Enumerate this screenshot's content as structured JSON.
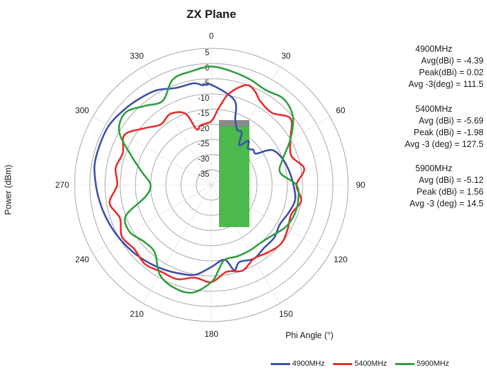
{
  "chart_data": {
    "type": "polar-line",
    "title": "ZX Plane",
    "xlabel": "Phi Angle (°)",
    "ylabel": "Power (dBm)",
    "radial_ticks": [
      "5",
      "0",
      "-5",
      "-10",
      "-15",
      "-20",
      "-25",
      "-30",
      "-35"
    ],
    "radial_range": [
      -40,
      5
    ],
    "angle_ticks": [
      "0",
      "30",
      "60",
      "90",
      "120",
      "150",
      "180",
      "210",
      "240",
      "270",
      "300",
      "330"
    ],
    "angle_direction": "clockwise",
    "grid": true,
    "legend_position": "bottom-right",
    "series": [
      {
        "name": "4900MHz",
        "color": "#3f4fa8",
        "phi": [
          0,
          15,
          20,
          25,
          30,
          35,
          40,
          45,
          50,
          55,
          60,
          70,
          80,
          90,
          100,
          110,
          120,
          130,
          140,
          150,
          160,
          165,
          170,
          180,
          190,
          200,
          210,
          220,
          230,
          240,
          250,
          260,
          270,
          280,
          290,
          300,
          310,
          320,
          330,
          340,
          350,
          355
        ],
        "power": [
          -7,
          -11,
          -17,
          -20,
          -20,
          -24,
          -21,
          -23,
          -22,
          -22,
          -17,
          -15,
          -14,
          -13,
          -12,
          -13,
          -14,
          -13,
          -13,
          -12,
          -13,
          -11,
          -15,
          -13,
          -10,
          -9,
          -8,
          -7,
          -6,
          -5,
          -4,
          -3,
          -2,
          -1,
          -1,
          -1,
          -2,
          -3,
          -4,
          -6,
          -6,
          -7
        ]
      },
      {
        "name": "5400MHz",
        "color": "#e82c2c",
        "phi": [
          0,
          5,
          10,
          15,
          20,
          25,
          30,
          40,
          50,
          60,
          70,
          80,
          90,
          100,
          110,
          120,
          130,
          140,
          150,
          160,
          170,
          180,
          190,
          200,
          210,
          220,
          230,
          240,
          250,
          260,
          270,
          280,
          290,
          300,
          310,
          320,
          330,
          340,
          345,
          350
        ],
        "power": [
          -19,
          -15,
          -10,
          -7,
          -5,
          -6,
          -8,
          -9,
          -6,
          -10,
          -12,
          -9,
          -12,
          -10,
          -12,
          -11,
          -10,
          -11,
          -12,
          -10,
          -11,
          -8,
          -9,
          -7,
          -7,
          -6,
          -7,
          -6,
          -8,
          -6,
          -9,
          -8,
          -9,
          -7,
          -11,
          -14,
          -13,
          -15,
          -21,
          -20
        ]
      },
      {
        "name": "5900MHz",
        "color": "#2e9e3c",
        "phi": [
          0,
          10,
          20,
          30,
          40,
          50,
          60,
          70,
          80,
          90,
          100,
          110,
          120,
          130,
          140,
          150,
          160,
          170,
          175,
          180,
          190,
          200,
          210,
          220,
          230,
          240,
          250,
          260,
          270,
          280,
          290,
          300,
          310,
          320,
          330,
          340,
          350
        ],
        "power": [
          -1,
          -2,
          -3,
          -4,
          -3,
          -5,
          -10,
          -15,
          -17,
          -12,
          -11,
          -11,
          -12,
          -14,
          -15,
          -15,
          -15,
          -15,
          -12,
          -8,
          -4,
          -4,
          -6,
          -11,
          -11,
          -9,
          -10,
          -18,
          -20,
          -17,
          -12,
          -5,
          -3,
          -6,
          -8,
          -3,
          -2
        ]
      }
    ]
  },
  "stats": [
    {
      "header": "4900MHz",
      "lines": [
        "Avg(dBi) = -4.39",
        "Peak(dBi) = 0.02",
        "Avg -3(deg) = 111.5"
      ]
    },
    {
      "header": "5400MHz",
      "lines": [
        "Avg (dBi) =   -5.69",
        "Peak (dBi) =   -1.98",
        "Avg -3 (deg) =   127.5"
      ]
    },
    {
      "header": "5900MHz",
      "lines": [
        "Avg (dBi) =  -5.12",
        "Peak (dBi) =  1.56",
        "Avg -3 (deg) =  14.5"
      ]
    }
  ],
  "overlay_colors": {
    "bar_fill": "#4cb94c",
    "bar_cap": "#8a8a8a"
  }
}
